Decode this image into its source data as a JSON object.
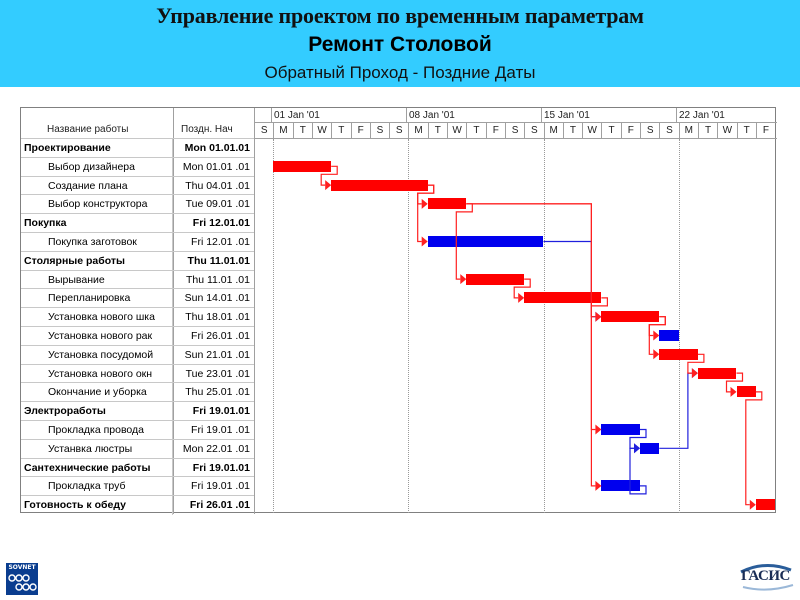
{
  "header": {
    "title": "Управление проектом по временным параметрам",
    "subtitle": "Ремонт Столовой",
    "caption": "Обратный  Проход - Поздние  Даты",
    "background_color": "#33ccff"
  },
  "table": {
    "columns": [
      "Название работы",
      "Поздн. Нач"
    ]
  },
  "timeline": {
    "weeks": [
      "01 Jan '01",
      "08 Jan '01",
      "15 Jan '01",
      "22 Jan '01"
    ],
    "days": [
      "S",
      "M",
      "T",
      "W",
      "T",
      "F",
      "S",
      "S",
      "M",
      "T",
      "W",
      "T",
      "F",
      "S",
      "S",
      "M",
      "T",
      "W",
      "T",
      "F",
      "S",
      "S",
      "M",
      "T",
      "W",
      "T",
      "F"
    ]
  },
  "chart_data": {
    "type": "gantt",
    "title": "Ремонт Столовой — Обратный Проход - Поздние Даты",
    "xlabel": "",
    "ylabel": "",
    "x_range": [
      "31.12.00",
      "26.01.01"
    ],
    "colors": {
      "critical": "#ff0000",
      "non_critical": "#0000ee"
    },
    "tasks": [
      {
        "name": "Проектирование",
        "late_start": "Mon 01.01.01",
        "summary": true
      },
      {
        "name": "Выбор дизайнера",
        "late_start": "Mon 01.01 .01",
        "start_day": 1,
        "duration": 3,
        "critical": true
      },
      {
        "name": "Создание плана",
        "late_start": "Thu 04.01 .01",
        "start_day": 4,
        "duration": 5,
        "critical": true
      },
      {
        "name": "Выбор конструктора",
        "late_start": "Tue 09.01 .01",
        "start_day": 9,
        "duration": 2,
        "critical": true
      },
      {
        "name": "Покупка",
        "late_start": "Fri 12.01.01",
        "summary": true
      },
      {
        "name": "Покупка заготовок",
        "late_start": "Fri 12.01 .01",
        "start_day": 9,
        "duration": 6,
        "critical": false
      },
      {
        "name": "Столярные работы",
        "late_start": "Thu 11.01.01",
        "summary": true
      },
      {
        "name": "Вырывание",
        "late_start": "Thu 11.01 .01",
        "start_day": 11,
        "duration": 3,
        "critical": true
      },
      {
        "name": "Перепланировка",
        "late_start": "Sun 14.01 .01",
        "start_day": 14,
        "duration": 4,
        "critical": true
      },
      {
        "name": "Установка нового шка",
        "late_start": "Thu 18.01 .01",
        "start_day": 18,
        "duration": 3,
        "critical": true
      },
      {
        "name": "Установка нового рак",
        "late_start": "Fri 26.01 .01",
        "start_day": 21,
        "duration": 1,
        "critical": false
      },
      {
        "name": "Установка посудомой",
        "late_start": "Sun 21.01 .01",
        "start_day": 21,
        "duration": 2,
        "critical": true
      },
      {
        "name": "Установка нового окн",
        "late_start": "Tue 23.01 .01",
        "start_day": 23,
        "duration": 2,
        "critical": true
      },
      {
        "name": "Окончание и уборка",
        "late_start": "Thu 25.01 .01",
        "start_day": 25,
        "duration": 1,
        "critical": true
      },
      {
        "name": "Электроработы",
        "late_start": "Fri 19.01.01",
        "summary": true
      },
      {
        "name": "Прокладка провода",
        "late_start": "Fri 19.01 .01",
        "start_day": 18,
        "duration": 2,
        "critical": false
      },
      {
        "name": "Устанвка люстры",
        "late_start": "Mon 22.01 .01",
        "start_day": 20,
        "duration": 1,
        "critical": false
      },
      {
        "name": "Сантехнические работы",
        "late_start": "Fri 19.01.01",
        "summary": true
      },
      {
        "name": "Прокладка труб",
        "late_start": "Fri 19.01 .01",
        "start_day": 18,
        "duration": 2,
        "critical": false
      },
      {
        "name": "Готовность к обеду",
        "late_start": "Fri 26.01 .01",
        "summary": true,
        "start_day": 26,
        "duration": 1,
        "critical": true
      }
    ],
    "legend": [],
    "grid": true
  },
  "rows": [
    {
      "name": "Проектирование",
      "date": "Mon 01.01.01",
      "summary": true
    },
    {
      "name": "Выбор дизайнера",
      "date": "Mon 01.01 .01"
    },
    {
      "name": "Создание плана",
      "date": "Thu 04.01 .01"
    },
    {
      "name": "Выбор конструктора",
      "date": "Tue 09.01 .01"
    },
    {
      "name": "Покупка",
      "date": "Fri 12.01.01",
      "summary": true
    },
    {
      "name": "Покупка заготовок",
      "date": "Fri 12.01 .01"
    },
    {
      "name": "Столярные работы",
      "date": "Thu 11.01.01",
      "summary": true
    },
    {
      "name": "Вырывание",
      "date": "Thu 11.01 .01"
    },
    {
      "name": "Перепланировка",
      "date": "Sun 14.01 .01"
    },
    {
      "name": "Установка нового шка",
      "date": "Thu 18.01 .01"
    },
    {
      "name": "Установка нового рак",
      "date": "Fri 26.01 .01"
    },
    {
      "name": "Установка посудомой",
      "date": "Sun 21.01 .01"
    },
    {
      "name": "Установка нового окн",
      "date": "Tue 23.01 .01"
    },
    {
      "name": "Окончание и уборка",
      "date": "Thu 25.01 .01"
    },
    {
      "name": "Электроработы",
      "date": "Fri 19.01.01",
      "summary": true
    },
    {
      "name": "Прокладка провода",
      "date": "Fri 19.01 .01"
    },
    {
      "name": "Устанвка люстры",
      "date": "Mon 22.01 .01"
    },
    {
      "name": "Сантехнические работы",
      "date": "Fri 19.01.01",
      "summary": true
    },
    {
      "name": "Прокладка труб",
      "date": "Fri 19.01 .01"
    },
    {
      "name": "Готовность к обеду",
      "date": "Fri 26.01 .01",
      "summary": true
    }
  ],
  "logos": {
    "left": "SOVNET",
    "right": "ГАСИС"
  }
}
